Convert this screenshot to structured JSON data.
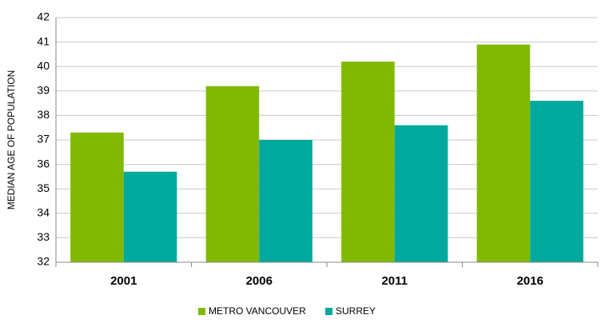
{
  "chart_data": {
    "type": "bar",
    "y_label": "MEDIAN AGE OF POPULATION",
    "categories": [
      "2001",
      "2006",
      "2011",
      "2016"
    ],
    "series": [
      {
        "name": "METRO VANCOUVER",
        "color": "#7fba00",
        "values": [
          37.3,
          39.2,
          40.2,
          40.9
        ]
      },
      {
        "name": "SURREY",
        "color": "#00a99d",
        "values": [
          35.7,
          37.0,
          37.6,
          38.6
        ]
      }
    ],
    "ylim": [
      32,
      42
    ],
    "yticks": [
      32,
      33,
      34,
      35,
      36,
      37,
      38,
      39,
      40,
      41,
      42
    ],
    "grid": true,
    "legend": "bottom"
  }
}
